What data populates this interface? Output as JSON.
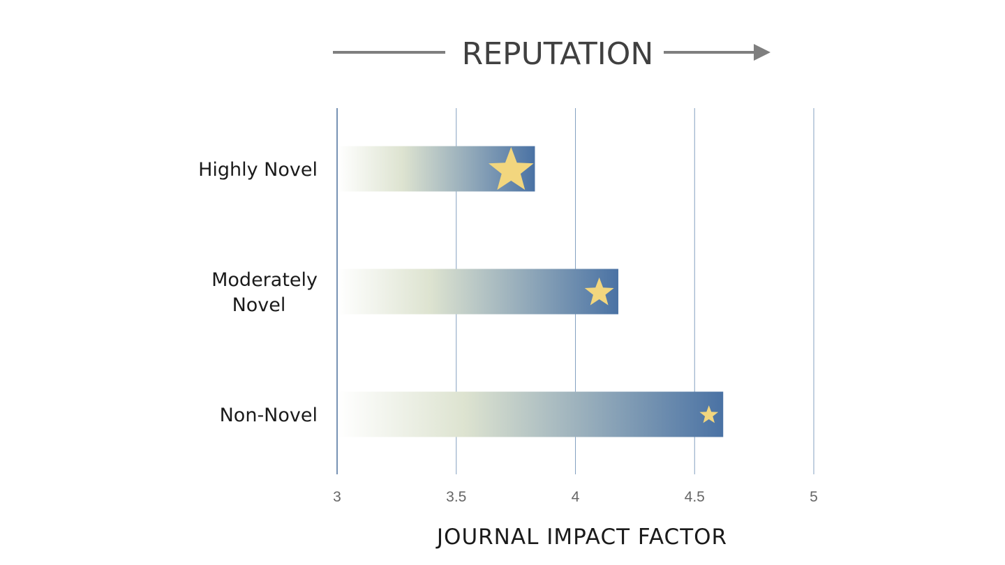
{
  "banner": {
    "text": "REPUTATION",
    "arrow_color": "#7f7f7f"
  },
  "chart_data": {
    "type": "bar",
    "orientation": "horizontal",
    "categories": [
      "Highly Novel",
      "Moderately Novel",
      "Non-Novel"
    ],
    "category_lines": [
      [
        "Highly Novel"
      ],
      [
        "Moderately",
        "Novel"
      ],
      [
        "Non-Novel"
      ]
    ],
    "values": [
      3.83,
      4.18,
      4.62
    ],
    "star_values": [
      3.73,
      4.1,
      4.56
    ],
    "star_sizes": [
      "large",
      "medium",
      "small"
    ],
    "xlim": [
      3,
      5
    ],
    "xticks": [
      "3",
      "3.5",
      "4",
      "4.5",
      "5"
    ],
    "xlabel": "JOURNAL IMPACT FACTOR",
    "grid": "vertical",
    "colors": {
      "bar_start": "#ffffff",
      "bar_mid": "#dde3d0",
      "bar_end": "#4a72a4",
      "star": "#f2d67e",
      "grid": "#6f8fb5",
      "axis": "#4a6f9c"
    }
  }
}
